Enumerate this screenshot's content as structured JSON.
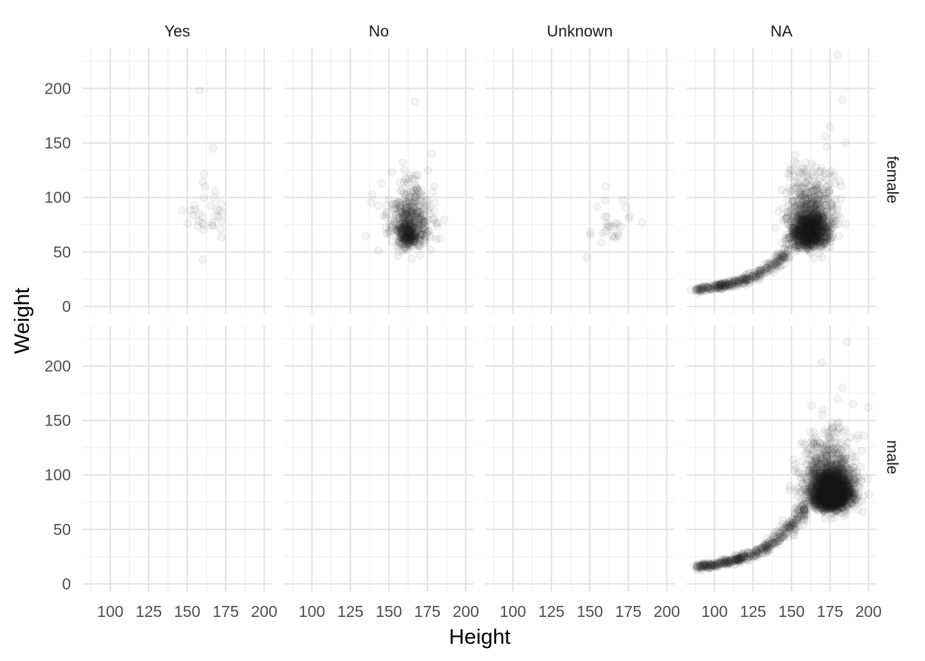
{
  "chart_data": {
    "type": "scatter",
    "facet_layout": "grid",
    "xlabel": "Height",
    "ylabel": "Weight",
    "xlim": [
      82,
      205
    ],
    "ylim": [
      -7,
      237
    ],
    "x_ticks": [
      100,
      125,
      150,
      175,
      200
    ],
    "y_ticks": [
      0,
      50,
      100,
      150,
      200
    ],
    "grid": true,
    "point_color": "#222222",
    "point_alpha": 0.05,
    "columns": [
      "Yes",
      "No",
      "Unknown",
      "NA"
    ],
    "rows": [
      "female",
      "male"
    ],
    "panels": [
      {
        "column": "Yes",
        "row": "female",
        "description": "few scattered points, height 145-180, weight 42-200",
        "clusters": [
          {
            "x": 163,
            "y": 78,
            "sx": 8,
            "sy": 18,
            "n": 32
          }
        ],
        "points": [
          [
            158,
            198
          ],
          [
            167,
            145
          ],
          [
            160,
            43
          ]
        ]
      },
      {
        "column": "No",
        "row": "female",
        "description": "cluster around height 162, weight 65; spread 140-190 height, 40-190 weight",
        "clusters": [
          {
            "x": 163,
            "y": 72,
            "sx": 7,
            "sy": 20,
            "n": 420
          },
          {
            "x": 162,
            "y": 62,
            "sx": 4,
            "sy": 8,
            "n": 160
          }
        ],
        "points": [
          [
            167,
            188
          ],
          [
            178,
            140
          ],
          [
            143,
            51
          ],
          [
            180,
            95
          ]
        ]
      },
      {
        "column": "Unknown",
        "row": "female",
        "description": "sparse points around height 160-185, weight 40-110",
        "clusters": [
          {
            "x": 163,
            "y": 70,
            "sx": 7,
            "sy": 15,
            "n": 26
          }
        ],
        "points": [
          [
            184,
            77
          ],
          [
            160,
            110
          ],
          [
            148,
            45
          ]
        ]
      },
      {
        "column": "NA",
        "row": "female",
        "description": "curved band from height 88 weight 12 to height 150 weight 40, dense cluster near height 162 weight 65",
        "curve": {
          "x_from": 88,
          "x_to": 148,
          "n": 330
        },
        "clusters": [
          {
            "x": 162,
            "y": 65,
            "sx": 6,
            "sy": 13,
            "n": 1000
          },
          {
            "x": 163,
            "y": 82,
            "sx": 8,
            "sy": 24,
            "n": 380
          }
        ],
        "points": [
          [
            180,
            231
          ],
          [
            183,
            190
          ],
          [
            175,
            165
          ],
          [
            185,
            150
          ]
        ]
      },
      {
        "column": "Yes",
        "row": "male",
        "description": "empty",
        "clusters": [],
        "points": []
      },
      {
        "column": "No",
        "row": "male",
        "description": "empty",
        "clusters": [],
        "points": []
      },
      {
        "column": "Unknown",
        "row": "male",
        "description": "empty",
        "clusters": [],
        "points": []
      },
      {
        "column": "NA",
        "row": "male",
        "description": "curved band from height 88 weight 12 to height 160 weight 50, very dense cluster near height 176 weight 80",
        "curve": {
          "x_from": 88,
          "x_to": 160,
          "n": 450
        },
        "clusters": [
          {
            "x": 176,
            "y": 80,
            "sx": 6,
            "sy": 12,
            "n": 2000
          },
          {
            "x": 175,
            "y": 88,
            "sx": 9,
            "sy": 24,
            "n": 650
          }
        ],
        "points": [
          [
            186,
            222
          ],
          [
            183,
            180
          ],
          [
            180,
            170
          ],
          [
            190,
            165
          ],
          [
            200,
            162
          ]
        ]
      }
    ]
  }
}
